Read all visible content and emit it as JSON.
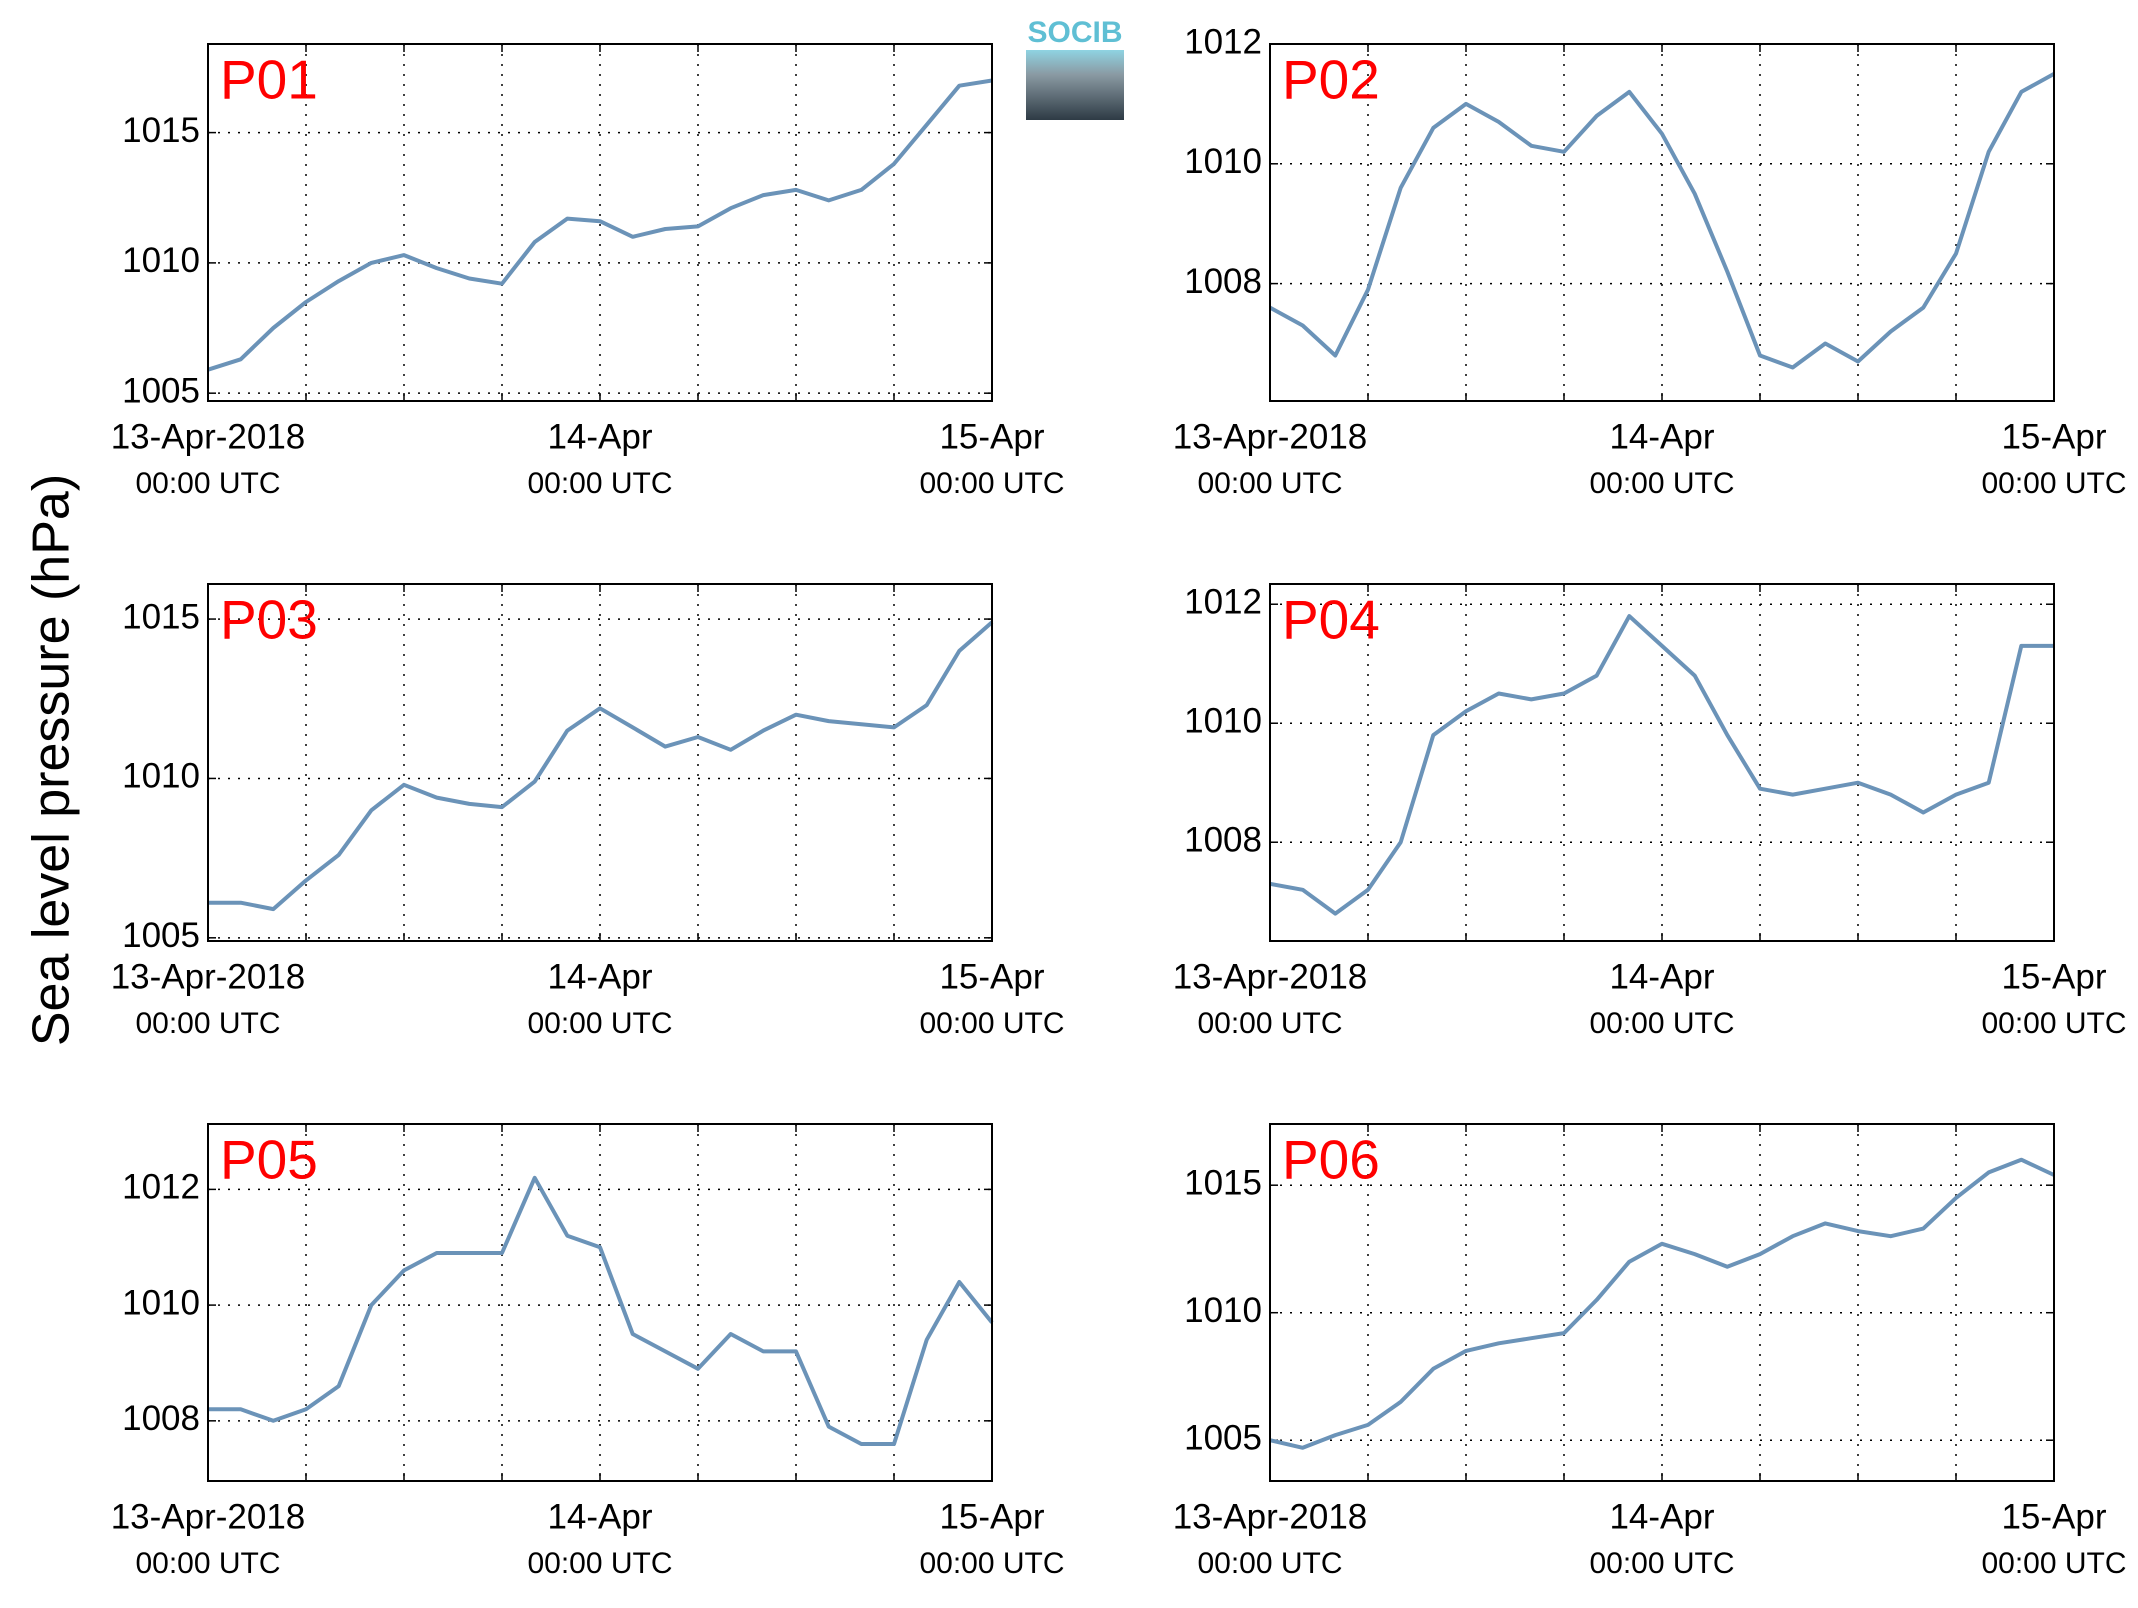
{
  "ylabel": "Sea level pressure (hPa)",
  "logo": "SOCIB",
  "chart_data": [
    {
      "type": "line",
      "title": "P01",
      "color": "#6b93b8",
      "xlim": [
        0,
        48
      ],
      "ylim": [
        1004.7,
        1018.4
      ],
      "yticks": [
        1005,
        1010,
        1015
      ],
      "xticks": [
        {
          "value": 0,
          "label": "13-Apr-2018",
          "sublabel": "00:00 UTC"
        },
        {
          "value": 24,
          "label": "14-Apr",
          "sublabel": "00:00 UTC"
        },
        {
          "value": 48,
          "label": "15-Apr",
          "sublabel": "00:00 UTC"
        }
      ],
      "xgrid": [
        0,
        6,
        12,
        18,
        24,
        30,
        36,
        42,
        48
      ],
      "grid": true,
      "x": [
        0,
        2,
        4,
        6,
        8,
        10,
        12,
        14,
        16,
        18,
        20,
        22,
        24,
        26,
        28,
        30,
        32,
        34,
        36,
        38,
        40,
        42,
        44,
        46,
        48
      ],
      "values": [
        1005.9,
        1006.3,
        1007.5,
        1008.5,
        1009.3,
        1010.0,
        1010.3,
        1009.8,
        1009.4,
        1009.2,
        1010.8,
        1011.7,
        1011.6,
        1011.0,
        1011.3,
        1011.4,
        1012.1,
        1012.6,
        1012.8,
        1012.4,
        1012.8,
        1013.8,
        1015.3,
        1016.8,
        1017.0
      ]
    },
    {
      "type": "line",
      "title": "P02",
      "color": "#6b93b8",
      "xlim": [
        0,
        48
      ],
      "ylim": [
        1006.04,
        1012
      ],
      "yticks": [
        1008,
        1010,
        1012
      ],
      "xticks": [
        {
          "value": 0,
          "label": "13-Apr-2018",
          "sublabel": "00:00 UTC"
        },
        {
          "value": 24,
          "label": "14-Apr",
          "sublabel": "00:00 UTC"
        },
        {
          "value": 48,
          "label": "15-Apr",
          "sublabel": "00:00 UTC"
        }
      ],
      "xgrid": [
        0,
        6,
        12,
        18,
        24,
        30,
        36,
        42,
        48
      ],
      "grid": true,
      "x": [
        0,
        2,
        4,
        6,
        8,
        10,
        12,
        14,
        16,
        18,
        20,
        22,
        24,
        26,
        28,
        30,
        32,
        34,
        36,
        38,
        40,
        42,
        44,
        46,
        48
      ],
      "values": [
        1007.6,
        1007.3,
        1006.8,
        1007.9,
        1009.6,
        1010.6,
        1011.0,
        1010.7,
        1010.3,
        1010.2,
        1010.8,
        1011.2,
        1010.5,
        1009.5,
        1008.2,
        1006.8,
        1006.6,
        1007.0,
        1006.7,
        1007.2,
        1007.6,
        1008.5,
        1010.2,
        1011.2,
        1011.5
      ]
    },
    {
      "type": "line",
      "title": "P03",
      "color": "#6b93b8",
      "xlim": [
        0,
        48
      ],
      "ylim": [
        1004.9,
        1016.1
      ],
      "yticks": [
        1005,
        1010,
        1015
      ],
      "xticks": [
        {
          "value": 0,
          "label": "13-Apr-2018",
          "sublabel": "00:00 UTC"
        },
        {
          "value": 24,
          "label": "14-Apr",
          "sublabel": "00:00 UTC"
        },
        {
          "value": 48,
          "label": "15-Apr",
          "sublabel": "00:00 UTC"
        }
      ],
      "xgrid": [
        0,
        6,
        12,
        18,
        24,
        30,
        36,
        42,
        48
      ],
      "grid": true,
      "x": [
        0,
        2,
        4,
        6,
        8,
        10,
        12,
        14,
        16,
        18,
        20,
        22,
        24,
        26,
        28,
        30,
        32,
        34,
        36,
        38,
        40,
        42,
        44,
        46,
        48
      ],
      "values": [
        1006.1,
        1006.1,
        1005.9,
        1006.8,
        1007.6,
        1009.0,
        1009.8,
        1009.4,
        1009.2,
        1009.1,
        1009.9,
        1011.5,
        1012.2,
        1011.6,
        1011.0,
        1011.3,
        1010.9,
        1011.5,
        1012.0,
        1011.8,
        1011.7,
        1011.6,
        1012.3,
        1014.0,
        1014.9
      ]
    },
    {
      "type": "line",
      "title": "P04",
      "color": "#6b93b8",
      "xlim": [
        0,
        48
      ],
      "ylim": [
        1006.34,
        1012.34
      ],
      "yticks": [
        1008,
        1010,
        1012
      ],
      "xticks": [
        {
          "value": 0,
          "label": "13-Apr-2018",
          "sublabel": "00:00 UTC"
        },
        {
          "value": 24,
          "label": "14-Apr",
          "sublabel": "00:00 UTC"
        },
        {
          "value": 48,
          "label": "15-Apr",
          "sublabel": "00:00 UTC"
        }
      ],
      "xgrid": [
        0,
        6,
        12,
        18,
        24,
        30,
        36,
        42,
        48
      ],
      "grid": true,
      "x": [
        0,
        2,
        4,
        6,
        8,
        10,
        12,
        14,
        16,
        18,
        20,
        22,
        24,
        26,
        28,
        30,
        32,
        34,
        36,
        38,
        40,
        42,
        44,
        46,
        48
      ],
      "values": [
        1007.3,
        1007.2,
        1006.8,
        1007.2,
        1008.0,
        1009.8,
        1010.2,
        1010.5,
        1010.4,
        1010.5,
        1010.8,
        1011.8,
        1011.3,
        1010.8,
        1009.8,
        1008.9,
        1008.8,
        1008.9,
        1009.0,
        1008.8,
        1008.5,
        1008.8,
        1009.0,
        1011.3,
        1011.3
      ]
    },
    {
      "type": "line",
      "title": "P05",
      "color": "#6b93b8",
      "xlim": [
        0,
        48
      ],
      "ylim": [
        1006.96,
        1013.13
      ],
      "yticks": [
        1008,
        1010,
        1012
      ],
      "xticks": [
        {
          "value": 0,
          "label": "13-Apr-2018",
          "sublabel": "00:00 UTC"
        },
        {
          "value": 24,
          "label": "14-Apr",
          "sublabel": "00:00 UTC"
        },
        {
          "value": 48,
          "label": "15-Apr",
          "sublabel": "00:00 UTC"
        }
      ],
      "xgrid": [
        0,
        6,
        12,
        18,
        24,
        30,
        36,
        42,
        48
      ],
      "grid": true,
      "x": [
        0,
        2,
        4,
        6,
        8,
        10,
        12,
        14,
        16,
        18,
        20,
        22,
        24,
        26,
        28,
        30,
        32,
        34,
        36,
        38,
        40,
        42,
        44,
        46,
        48
      ],
      "values": [
        1008.2,
        1008.2,
        1008.0,
        1008.2,
        1008.6,
        1010.0,
        1010.6,
        1010.9,
        1010.9,
        1010.9,
        1012.2,
        1011.2,
        1011.0,
        1009.5,
        1009.2,
        1008.9,
        1009.5,
        1009.2,
        1009.2,
        1007.9,
        1007.6,
        1007.6,
        1009.4,
        1010.4,
        1009.7
      ]
    },
    {
      "type": "line",
      "title": "P06",
      "color": "#6b93b8",
      "xlim": [
        0,
        48
      ],
      "ylim": [
        1003.4,
        1017.4
      ],
      "yticks": [
        1005,
        1010,
        1015
      ],
      "xticks": [
        {
          "value": 0,
          "label": "13-Apr-2018",
          "sublabel": "00:00 UTC"
        },
        {
          "value": 24,
          "label": "14-Apr",
          "sublabel": "00:00 UTC"
        },
        {
          "value": 48,
          "label": "15-Apr",
          "sublabel": "00:00 UTC"
        }
      ],
      "xgrid": [
        0,
        6,
        12,
        18,
        24,
        30,
        36,
        42,
        48
      ],
      "grid": true,
      "x": [
        0,
        2,
        4,
        6,
        8,
        10,
        12,
        14,
        16,
        18,
        20,
        22,
        24,
        26,
        28,
        30,
        32,
        34,
        36,
        38,
        40,
        42,
        44,
        46,
        48
      ],
      "values": [
        1005.0,
        1004.7,
        1005.2,
        1005.6,
        1006.5,
        1007.8,
        1008.5,
        1008.8,
        1009.0,
        1009.2,
        1010.5,
        1012.0,
        1012.7,
        1012.3,
        1011.8,
        1012.3,
        1013.0,
        1013.5,
        1013.2,
        1013.0,
        1013.3,
        1014.5,
        1015.5,
        1016.0,
        1015.4
      ]
    }
  ]
}
